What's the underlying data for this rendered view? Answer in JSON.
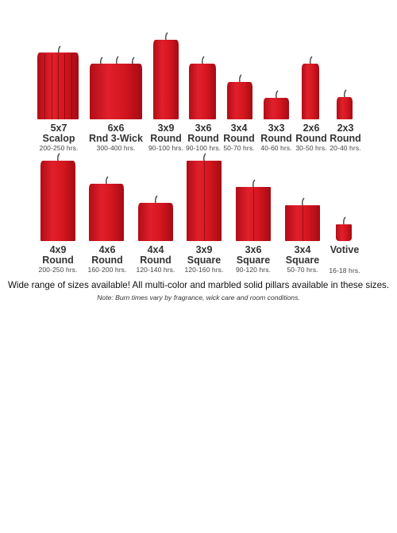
{
  "candles_row1": [
    {
      "l1": "5x7",
      "l2": "Scalop",
      "hrs": "200-250 hrs."
    },
    {
      "l1": "6x6",
      "l2": "Rnd 3-Wick",
      "hrs": "300-400 hrs."
    },
    {
      "l1": "3x9",
      "l2": "Round",
      "hrs": "90-100 hrs."
    },
    {
      "l1": "3x6",
      "l2": "Round",
      "hrs": "90-100 hrs."
    },
    {
      "l1": "3x4",
      "l2": "Round",
      "hrs": "50-70 hrs."
    },
    {
      "l1": "3x3",
      "l2": "Round",
      "hrs": "40-60 hrs."
    },
    {
      "l1": "2x6",
      "l2": "Round",
      "hrs": "30-50 hrs."
    },
    {
      "l1": "2x3",
      "l2": "Round",
      "hrs": "20-40 hrs."
    }
  ],
  "candles_row2": [
    {
      "l1": "4x9",
      "l2": "Round",
      "hrs": "200-250 hrs."
    },
    {
      "l1": "4x6",
      "l2": "Round",
      "hrs": "160-200 hrs."
    },
    {
      "l1": "4x4",
      "l2": "Round",
      "hrs": "120-140 hrs."
    },
    {
      "l1": "3x9",
      "l2": "Square",
      "hrs": "120-160 hrs."
    },
    {
      "l1": "3x6",
      "l2": "Square",
      "hrs": "90-120 hrs."
    },
    {
      "l1": "3x4",
      "l2": "Square",
      "hrs": "50-70 hrs."
    },
    {
      "l1": "Votive",
      "l2": "",
      "hrs": "16-18 hrs."
    }
  ],
  "caption": "Wide range of sizes available! All multi-color and marbled solid pillars available in these sizes.",
  "note": "Note: Burn times vary by fragrance, wick care and room conditions.",
  "colors": {
    "candle": "#d4161f",
    "candle_dark": "#a60b14",
    "wick": "#444444"
  }
}
